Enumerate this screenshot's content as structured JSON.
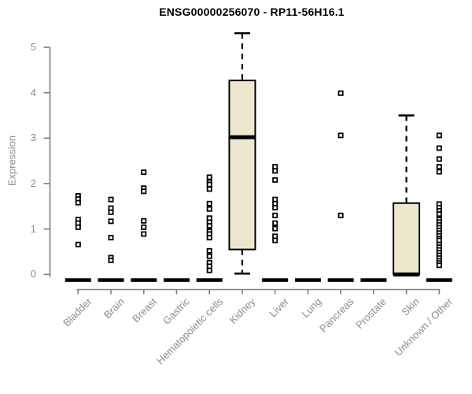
{
  "chart_data": {
    "type": "boxplot",
    "title": "ENSG00000256070 - RP11-56H16.1",
    "xlabel": "",
    "ylabel": "Expression",
    "ylim": [
      0,
      5.4
    ],
    "yticks": [
      "0",
      "1",
      "2",
      "3",
      "4",
      "5"
    ],
    "grid": false,
    "legend": false,
    "categories": [
      "Bladder",
      "Brain",
      "Breast",
      "Gastric",
      "Hematopoietic cells",
      "Kidney",
      "Liver",
      "Lung",
      "Pancreas",
      "Prostate",
      "Skin",
      "Unknown / Other"
    ],
    "groups": [
      {
        "name": "Bladder",
        "q1": 0,
        "median": 0,
        "q3": 0,
        "whisker_low": 0,
        "whisker_high": 0,
        "outliers": [
          1.73,
          1.66,
          1.58,
          1.21,
          1.13,
          1.04,
          0.66
        ]
      },
      {
        "name": "Brain",
        "q1": 0,
        "median": 0,
        "q3": 0,
        "whisker_low": 0,
        "whisker_high": 0,
        "outliers": [
          1.65,
          1.46,
          1.37,
          1.17,
          0.81,
          0.37,
          0.31
        ]
      },
      {
        "name": "Breast",
        "q1": 0,
        "median": 0,
        "q3": 0,
        "whisker_low": 0,
        "whisker_high": 0,
        "outliers": [
          2.25,
          1.9,
          1.83,
          1.18,
          1.04,
          0.89
        ]
      },
      {
        "name": "Gastric",
        "q1": 0,
        "median": 0,
        "q3": 0,
        "whisker_low": 0,
        "whisker_high": 0,
        "outliers": []
      },
      {
        "name": "Hematopoietic cells",
        "q1": 0,
        "median": 0,
        "q3": 0,
        "whisker_low": 0,
        "whisker_high": 0,
        "outliers": [
          2.14,
          2.03,
          1.98,
          1.88,
          1.56,
          1.44,
          1.24,
          1.15,
          1.07,
          0.95,
          0.89,
          0.81,
          0.52,
          0.4,
          0.26,
          0.18,
          0.09
        ]
      },
      {
        "name": "Kidney",
        "q1": 0.55,
        "median": 3.02,
        "q3": 4.27,
        "whisker_low": 0.02,
        "whisker_high": 5.31,
        "outliers": []
      },
      {
        "name": "Liver",
        "q1": 0,
        "median": 0,
        "q3": 0,
        "whisker_low": 0,
        "whisker_high": 0,
        "outliers": [
          2.37,
          2.28,
          2.08,
          1.65,
          1.56,
          1.47,
          1.3,
          1.13,
          1.01,
          0.84,
          0.75
        ]
      },
      {
        "name": "Lung",
        "q1": 0,
        "median": 0,
        "q3": 0,
        "whisker_low": 0,
        "whisker_high": 0,
        "outliers": []
      },
      {
        "name": "Pancreas",
        "q1": 0,
        "median": 0,
        "q3": 0,
        "whisker_low": 0,
        "whisker_high": 0,
        "outliers": [
          3.99,
          3.06,
          1.3
        ]
      },
      {
        "name": "Prostate",
        "q1": 0,
        "median": 0,
        "q3": 0,
        "whisker_low": 0,
        "whisker_high": 0,
        "outliers": []
      },
      {
        "name": "Skin",
        "q1": 0,
        "median": 0,
        "q3": 1.57,
        "whisker_low": 0,
        "whisker_high": 3.5,
        "outliers": []
      },
      {
        "name": "Unknown / Other",
        "q1": 0,
        "median": 0,
        "q3": 0,
        "whisker_low": 0,
        "whisker_high": 0,
        "outliers": [
          3.06,
          2.78,
          2.54,
          2.37,
          2.26,
          1.55,
          1.47,
          1.4,
          1.33,
          1.21,
          1.15,
          1.09,
          1.03,
          0.97,
          0.91,
          0.85,
          0.79,
          0.75,
          0.66,
          0.6,
          0.54,
          0.48,
          0.42,
          0.36,
          0.3,
          0.25,
          0.2
        ]
      }
    ],
    "style": {
      "box_fill": "#ede7ce",
      "box_border": "#000000",
      "median_color": "#000000",
      "outlier_color": "#000000",
      "axis_line": "#7f7f7f",
      "tick_label": "#8c8c8c",
      "title_color": "#000000",
      "background": "#ffffff"
    }
  }
}
